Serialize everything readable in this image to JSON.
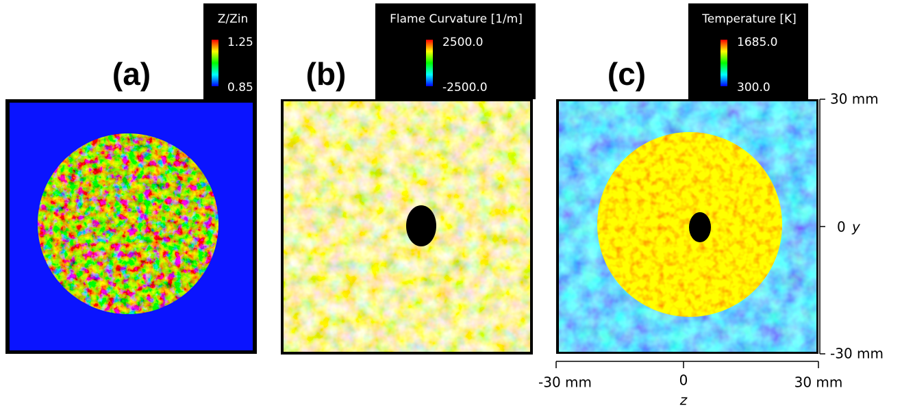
{
  "panels": [
    {
      "label": "(a)",
      "colorbar_title": "Z/Zin",
      "max": "1.25",
      "min": "0.85"
    },
    {
      "label": "(b)",
      "colorbar_title": "Flame Curvature [1/m]",
      "max": "2500.0",
      "min": "-2500.0"
    },
    {
      "label": "(c)",
      "colorbar_title": "Temperature [K]",
      "max": "1685.0",
      "min": "300.0"
    }
  ],
  "y_axis": {
    "label": "y",
    "ticks": [
      "30 mm",
      "0",
      "-30 mm"
    ]
  },
  "x_axis": {
    "label": "z",
    "ticks": [
      "-30 mm",
      "0",
      "30 mm"
    ]
  }
}
